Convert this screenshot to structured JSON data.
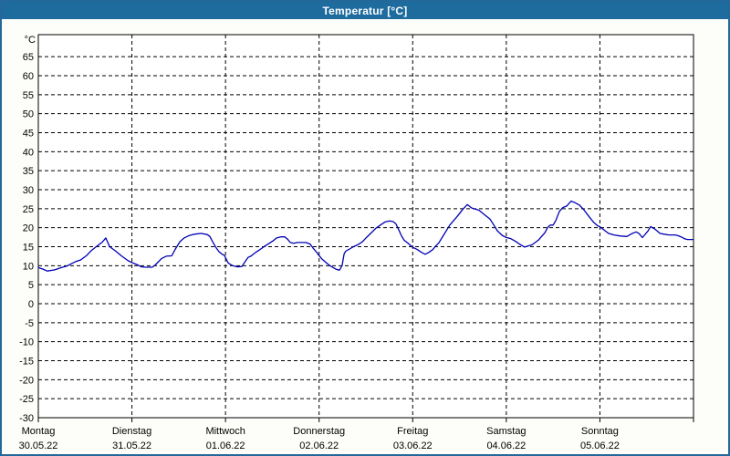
{
  "window": {
    "title": "Temperatur [°C]"
  },
  "colors": {
    "titlebar_bg": "#1e6b9e",
    "window_border": "#24689a",
    "content_bg": "#fdfdfa",
    "plot_bg": "#ffffff",
    "grid": "#000000",
    "line": "#0000b4"
  },
  "chart_data": {
    "type": "line",
    "title": "Temperatur [°C]",
    "ylabel": "°C",
    "ylim": [
      -30,
      70.8
    ],
    "y_ticks": [
      65,
      60,
      55,
      50,
      45,
      40,
      35,
      30,
      25,
      20,
      15,
      10,
      5,
      0,
      -5,
      -10,
      -15,
      -20,
      -25,
      -30
    ],
    "grid": "dashed",
    "legend": "none",
    "x_hours_total": 168,
    "x_days": [
      {
        "label": "Montag",
        "date": "30.05.22"
      },
      {
        "label": "Dienstag",
        "date": "31.05.22"
      },
      {
        "label": "Mittwoch",
        "date": "01.06.22"
      },
      {
        "label": "Donnerstag",
        "date": "02.06.22"
      },
      {
        "label": "Freitag",
        "date": "03.06.22"
      },
      {
        "label": "Samstag",
        "date": "04.06.22"
      },
      {
        "label": "Sonntag",
        "date": "05.06.22"
      }
    ],
    "series": [
      {
        "name": "Temperatur",
        "color": "#0000b4",
        "points_format": "[hours_since_monday_00h, temp_C]",
        "points": [
          [
            0,
            9.5
          ],
          [
            1.2,
            9.1
          ],
          [
            2.3,
            8.6
          ],
          [
            4.2,
            8.9
          ],
          [
            5.9,
            9.5
          ],
          [
            7.3,
            9.9
          ],
          [
            8.4,
            10.5
          ],
          [
            9.6,
            11.1
          ],
          [
            10.8,
            11.5
          ],
          [
            12.4,
            12.7
          ],
          [
            13.6,
            14.0
          ],
          [
            15.2,
            15.3
          ],
          [
            16.4,
            16.2
          ],
          [
            17.3,
            17.3
          ],
          [
            18.3,
            15.0
          ],
          [
            19.9,
            13.8
          ],
          [
            21.3,
            12.6
          ],
          [
            22.9,
            11.4
          ],
          [
            23.6,
            11.0
          ],
          [
            25.3,
            10.3
          ],
          [
            26.4,
            9.7
          ],
          [
            27.6,
            9.6
          ],
          [
            29.2,
            9.6
          ],
          [
            30,
            10.2
          ],
          [
            31.6,
            11.9
          ],
          [
            32.8,
            12.5
          ],
          [
            34.2,
            12.6
          ],
          [
            35.1,
            14.3
          ],
          [
            36.3,
            16.3
          ],
          [
            37.4,
            17.3
          ],
          [
            38.6,
            17.9
          ],
          [
            40,
            18.3
          ],
          [
            41.7,
            18.5
          ],
          [
            43.3,
            18.2
          ],
          [
            44,
            17.7
          ],
          [
            44.7,
            16.3
          ],
          [
            45.6,
            14.7
          ],
          [
            46.3,
            13.7
          ],
          [
            47,
            13.1
          ],
          [
            47.7,
            12.7
          ],
          [
            48.7,
            10.7
          ],
          [
            49.8,
            10.0
          ],
          [
            51,
            9.7
          ],
          [
            52.2,
            9.8
          ],
          [
            53.3,
            11.5
          ],
          [
            53.8,
            12.2
          ],
          [
            54.5,
            12.5
          ],
          [
            55.7,
            13.5
          ],
          [
            56.9,
            14.3
          ],
          [
            58,
            15.1
          ],
          [
            59.2,
            15.9
          ],
          [
            60.4,
            16.7
          ],
          [
            61.1,
            17.3
          ],
          [
            62.2,
            17.6
          ],
          [
            63.2,
            17.6
          ],
          [
            63.9,
            17.0
          ],
          [
            64.6,
            16.1
          ],
          [
            65.5,
            15.9
          ],
          [
            66.4,
            16.1
          ],
          [
            68.6,
            16.1
          ],
          [
            69.7,
            15.7
          ],
          [
            70.4,
            14.7
          ],
          [
            71.4,
            13.5
          ],
          [
            71.8,
            12.9
          ],
          [
            72.8,
            11.7
          ],
          [
            73.7,
            10.9
          ],
          [
            74.4,
            10.3
          ],
          [
            75.1,
            9.8
          ],
          [
            76.3,
            9.1
          ],
          [
            77.2,
            8.8
          ],
          [
            77.9,
            10.0
          ],
          [
            78.4,
            13.1
          ],
          [
            78.8,
            13.8
          ],
          [
            79.8,
            14.4
          ],
          [
            81,
            15.1
          ],
          [
            81.9,
            15.5
          ],
          [
            83.1,
            16.3
          ],
          [
            84.2,
            17.5
          ],
          [
            85.4,
            18.7
          ],
          [
            86.6,
            19.9
          ],
          [
            87.7,
            20.7
          ],
          [
            88.9,
            21.5
          ],
          [
            90.1,
            21.8
          ],
          [
            91,
            21.6
          ],
          [
            91.7,
            21.0
          ],
          [
            92.4,
            19.5
          ],
          [
            93.1,
            17.9
          ],
          [
            93.8,
            16.7
          ],
          [
            94.8,
            15.9
          ],
          [
            95.9,
            14.9
          ],
          [
            97.1,
            14.3
          ],
          [
            98.3,
            13.5
          ],
          [
            99.2,
            13.0
          ],
          [
            100.1,
            13.5
          ],
          [
            101.1,
            14.2
          ],
          [
            102,
            15.3
          ],
          [
            102.7,
            16.0
          ],
          [
            103.9,
            18.0
          ],
          [
            105.5,
            20.7
          ],
          [
            107.6,
            23.2
          ],
          [
            108.8,
            24.8
          ],
          [
            110,
            26.1
          ],
          [
            111.1,
            25.2
          ],
          [
            113,
            24.6
          ],
          [
            114.2,
            23.6
          ],
          [
            115.8,
            22.3
          ],
          [
            116.5,
            21.2
          ],
          [
            117.7,
            19.2
          ],
          [
            118.9,
            18.0
          ],
          [
            119.8,
            17.5
          ],
          [
            121.2,
            17.1
          ],
          [
            122.4,
            16.4
          ],
          [
            123.5,
            15.6
          ],
          [
            124.7,
            14.9
          ],
          [
            126.6,
            15.5
          ],
          [
            128.2,
            16.7
          ],
          [
            129.9,
            18.7
          ],
          [
            130.6,
            20.1
          ],
          [
            131.3,
            20.7
          ],
          [
            132,
            20.7
          ],
          [
            132.7,
            21.9
          ],
          [
            133.6,
            24.3
          ],
          [
            134.5,
            25.3
          ],
          [
            135.5,
            25.7
          ],
          [
            136.6,
            27.0
          ],
          [
            137.6,
            26.6
          ],
          [
            138.8,
            25.9
          ],
          [
            139.9,
            24.7
          ],
          [
            141.1,
            23.1
          ],
          [
            142.3,
            21.5
          ],
          [
            143.4,
            20.5
          ],
          [
            143.9,
            20.3
          ],
          [
            145.1,
            19.4
          ],
          [
            146.2,
            18.5
          ],
          [
            147.6,
            18.1
          ],
          [
            149.3,
            17.8
          ],
          [
            150.9,
            17.7
          ],
          [
            152.3,
            18.5
          ],
          [
            153.3,
            18.9
          ],
          [
            154,
            18.5
          ],
          [
            154.9,
            17.4
          ],
          [
            156.3,
            19.1
          ],
          [
            157,
            20.3
          ],
          [
            158,
            19.7
          ],
          [
            158.7,
            19.1
          ],
          [
            159.4,
            18.5
          ],
          [
            160.5,
            18.3
          ],
          [
            161.7,
            18.1
          ],
          [
            163.3,
            18.1
          ],
          [
            164,
            17.9
          ],
          [
            165,
            17.5
          ],
          [
            165.7,
            17.1
          ],
          [
            166.4,
            16.9
          ],
          [
            168,
            16.9
          ]
        ]
      }
    ]
  }
}
